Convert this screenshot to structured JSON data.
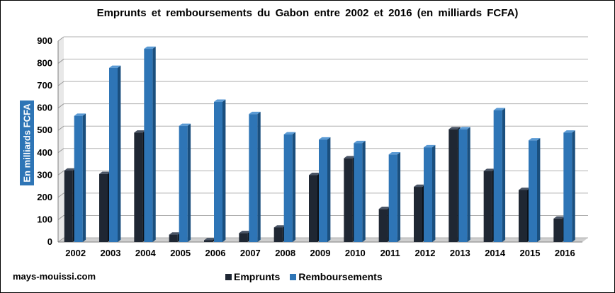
{
  "title": "Emprunts  et remboursements  du Gabon  entre 2002  et 2016  (en milliards  FCFA)",
  "source": "mays-mouissi.com",
  "colors": {
    "emprunts": "#1f2733",
    "remboursements": "#2e75b6"
  },
  "chart_data": {
    "type": "bar",
    "title": "Emprunts  et remboursements  du Gabon  entre 2002  et 2016  (en milliards  FCFA)",
    "xlabel": "",
    "ylabel": "En milliards FCFA",
    "ylim": [
      0,
      900
    ],
    "yticks": [
      0,
      100,
      200,
      300,
      400,
      500,
      600,
      700,
      800,
      900
    ],
    "grid": true,
    "legend_position": "bottom",
    "categories": [
      "2002",
      "2003",
      "2004",
      "2005",
      "2006",
      "2007",
      "2008",
      "2009",
      "2010",
      "2011",
      "2012",
      "2013",
      "2014",
      "2015",
      "2016"
    ],
    "series": [
      {
        "name": "Emprunts",
        "values": [
          320,
          305,
          490,
          33,
          8,
          40,
          65,
          300,
          375,
          148,
          247,
          505,
          318,
          233,
          105
        ]
      },
      {
        "name": "Remboursements",
        "values": [
          565,
          780,
          865,
          520,
          628,
          573,
          482,
          459,
          443,
          392,
          424,
          505,
          590,
          455,
          490
        ]
      }
    ]
  }
}
